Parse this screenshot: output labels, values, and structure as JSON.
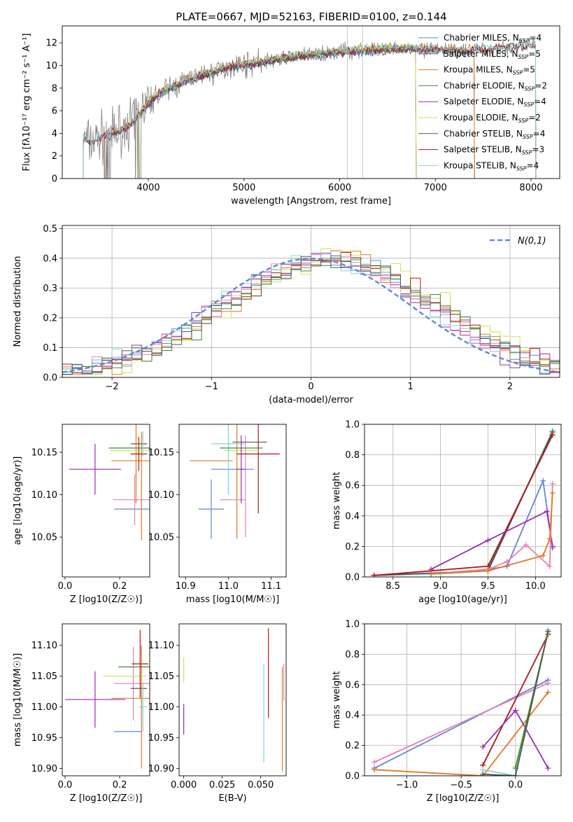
{
  "figure_title": "PLATE=0667, MJD=52163, FIBERID=0100, z=0.144",
  "colors": {
    "Chabrier MILES": "#5f87d6",
    "Salpeter MILES": "#666666",
    "Kroupa MILES": "#e07a20",
    "Chabrier ELODIE": "#3d8a3d",
    "Salpeter ELODIE": "#9a2db0",
    "Kroupa ELODIE": "#c8e64a",
    "Chabrier STELIB": "#555555",
    "Salpeter STELIB": "#b01515",
    "Kroupa STELIB": "#7fd6dc",
    "pink": "#e87fb8",
    "data_gray": "#808080",
    "normal_curve": "#5f87d6"
  },
  "chart_data": [
    {
      "id": "spectrum",
      "type": "line",
      "xlabel": "wavelength [Angstrom, rest frame]",
      "ylabel": "Flux [fλ10⁻¹⁷ erg cm⁻² s⁻¹ A⁻¹]",
      "xlim": [
        3100,
        8300
      ],
      "ylim": [
        0,
        13.5
      ],
      "xticks": [
        4000,
        5000,
        6000,
        7000,
        8000
      ],
      "yticks": [
        0,
        2,
        4,
        6,
        8,
        10,
        12
      ],
      "legend": [
        "Chabrier MILES, N_SSP=4",
        "Salpeter MILES, N_SSP=5",
        "Kroupa MILES, N_SSP=5",
        "Chabrier ELODIE, N_SSP=2",
        "Salpeter ELODIE, N_SSP=4",
        "Kroupa ELODIE, N_SSP=2",
        "Chabrier STELIB, N_SSP=4",
        "Salpeter STELIB, N_SSP=3",
        "Kroupa STELIB, N_SSP=4"
      ],
      "continuum": {
        "x": [
          3320,
          3400,
          3550,
          3700,
          3850,
          3950,
          4100,
          4300,
          4500,
          4700,
          4900,
          5100,
          5300,
          5500,
          5800,
          6100,
          6400,
          6700,
          7000,
          7300,
          7700,
          8050
        ],
        "y": [
          3.4,
          3.2,
          3.8,
          4.2,
          5.0,
          6.2,
          7.5,
          8.3,
          9.0,
          9.5,
          10.0,
          10.2,
          10.5,
          10.8,
          11.0,
          11.3,
          11.4,
          11.5,
          11.4,
          11.3,
          11.6,
          11.8
        ]
      },
      "legend_location": "upper right"
    },
    {
      "id": "residuals",
      "type": "histogram",
      "xlabel": "(data-model)/error",
      "ylabel": "Normed distribution",
      "xlim": [
        -2.5,
        2.5
      ],
      "ylim": [
        0,
        0.51
      ],
      "xticks": [
        -2,
        -1,
        0,
        1,
        2
      ],
      "yticks": [
        0.0,
        0.1,
        0.2,
        0.3,
        0.4,
        0.5
      ],
      "legend": [
        "N(0,1)"
      ],
      "bin_width": 0.1,
      "grid": true
    },
    {
      "id": "age_vs_Z",
      "type": "errorbar",
      "xlabel": "Z [log10(Z/Z☉)]",
      "ylabel": "age  [log10(age/yr)]",
      "xlim": [
        -0.01,
        0.31
      ],
      "ylim": [
        10.003,
        10.183
      ],
      "xticks": [
        0.0,
        0.2
      ],
      "yticks": [
        10.05,
        10.1,
        10.15
      ],
      "points": [
        {
          "c": "Salpeter ELODIE",
          "x": 0.11,
          "y": 10.13,
          "xerr": 0.095,
          "yerr": 0.03
        },
        {
          "c": "Chabrier MILES",
          "x": 0.25,
          "y": 10.083,
          "xerr": 0.07,
          "yerr": 0.0
        },
        {
          "c": "pink",
          "x": 0.255,
          "y": 10.094,
          "xerr": 0.08,
          "yerr": 0.03
        },
        {
          "c": "Kroupa MILES",
          "x": 0.26,
          "y": 10.14,
          "xerr": 0.09,
          "yerr": 0.05
        },
        {
          "c": "Kroupa MILES",
          "x": 0.28,
          "y": 10.11,
          "xerr": 0.0,
          "yerr": 0.064
        },
        {
          "c": "Chabrier ELODIE",
          "x": 0.25,
          "y": 10.155,
          "xerr": 0.09,
          "yerr": 0.0
        },
        {
          "c": "Kroupa ELODIE",
          "x": 0.24,
          "y": 10.152,
          "xerr": 0.075,
          "yerr": 0.0
        },
        {
          "c": "Salpeter STELIB",
          "x": 0.27,
          "y": 10.148,
          "xerr": 0.03,
          "yerr": 0.02
        },
        {
          "c": "Chabrier STELIB",
          "x": 0.27,
          "y": 10.16,
          "xerr": 0.03,
          "yerr": 0.0
        },
        {
          "c": "Kroupa STELIB",
          "x": 0.285,
          "y": 10.16,
          "xerr": 0.0,
          "yerr": 0.015
        }
      ]
    },
    {
      "id": "age_vs_mass",
      "type": "errorbar",
      "xlabel": "mass [log10(M/M☉)]",
      "ylabel": "",
      "xlim": [
        10.885,
        11.135
      ],
      "ylim": [
        10.003,
        10.183
      ],
      "xticks": [
        10.9,
        11.0,
        11.1
      ],
      "yticks": [
        10.05,
        10.1,
        10.15
      ],
      "points": [
        {
          "c": "Chabrier MILES",
          "x": 10.96,
          "y": 10.083,
          "xerr": 0.03,
          "yerr": 0.035
        },
        {
          "c": "Chabrier MILES",
          "x": 11.01,
          "y": 10.13,
          "xerr": 0.05,
          "yerr": 0.0
        },
        {
          "c": "Kroupa MILES",
          "x": 10.96,
          "y": 10.14,
          "xerr": 0.05,
          "yerr": 0.0
        },
        {
          "c": "Kroupa MILES",
          "x": 11.02,
          "y": 10.12,
          "xerr": 0.0,
          "yerr": 0.072
        },
        {
          "c": "pink",
          "x": 11.01,
          "y": 10.094,
          "xerr": 0.03,
          "yerr": 0.0
        },
        {
          "c": "pink",
          "x": 11.04,
          "y": 10.11,
          "xerr": 0.0,
          "yerr": 0.06
        },
        {
          "c": "Salpeter STELIB",
          "x": 11.07,
          "y": 10.148,
          "xerr": 0.05,
          "yerr": 0.07
        },
        {
          "c": "Kroupa STELIB",
          "x": 11.0,
          "y": 10.16,
          "xerr": 0.04,
          "yerr": 0.06
        },
        {
          "c": "Chabrier STELIB",
          "x": 11.05,
          "y": 10.162,
          "xerr": 0.04,
          "yerr": 0.0
        },
        {
          "c": "Chabrier ELODIE",
          "x": 11.03,
          "y": 10.155,
          "xerr": 0.05,
          "yerr": 0.0
        },
        {
          "c": "Kroupa ELODIE",
          "x": 11.03,
          "y": 10.152,
          "xerr": 0.04,
          "yerr": 0.0
        },
        {
          "c": "Salpeter ELODIE",
          "x": 11.03,
          "y": 10.13,
          "xerr": 0.01,
          "yerr": 0.04
        }
      ]
    },
    {
      "id": "mass_weight_vs_age",
      "type": "line",
      "xlabel": "age  [log10(age/yr)]",
      "ylabel": "mass weight",
      "xlim": [
        8.2,
        10.27
      ],
      "ylim": [
        0,
        1.0
      ],
      "xticks": [
        8.5,
        9.0,
        9.5,
        10.0
      ],
      "yticks": [
        0.0,
        0.2,
        0.4,
        0.6,
        0.8,
        1.0
      ],
      "grid": true,
      "series": [
        {
          "c": "Kroupa ELODIE",
          "x": [
            9.5,
            10.18
          ],
          "y": [
            0.06,
            0.94
          ]
        },
        {
          "c": "Chabrier ELODIE",
          "x": [
            9.5,
            10.18
          ],
          "y": [
            0.05,
            0.95
          ]
        },
        {
          "c": "Kroupa STELIB",
          "x": [
            8.3,
            9.0,
            9.5,
            10.18
          ],
          "y": [
            0.01,
            0.02,
            0.04,
            0.96
          ]
        },
        {
          "c": "Chabrier STELIB",
          "x": [
            8.3,
            9.5,
            10.18
          ],
          "y": [
            0.01,
            0.04,
            0.95
          ]
        },
        {
          "c": "Salpeter STELIB",
          "x": [
            8.3,
            8.9,
            9.5,
            10.18
          ],
          "y": [
            0.01,
            0.04,
            0.07,
            0.93
          ]
        },
        {
          "c": "Chabrier MILES",
          "x": [
            8.9,
            9.5,
            9.7,
            10.08,
            10.18
          ],
          "y": [
            0.02,
            0.05,
            0.07,
            0.63,
            0.19
          ]
        },
        {
          "c": "Salpeter ELODIE",
          "x": [
            8.9,
            9.5,
            10.12,
            10.18
          ],
          "y": [
            0.05,
            0.24,
            0.43,
            0.2
          ]
        },
        {
          "c": "pink",
          "x": [
            8.9,
            9.5,
            9.7,
            9.9,
            10.15,
            10.18
          ],
          "y": [
            0.02,
            0.05,
            0.1,
            0.21,
            0.07,
            0.61
          ]
        },
        {
          "c": "Kroupa MILES",
          "x": [
            8.9,
            9.5,
            10.08,
            10.15,
            10.18
          ],
          "y": [
            0.02,
            0.04,
            0.14,
            0.25,
            0.55
          ]
        }
      ]
    },
    {
      "id": "mass_vs_Z",
      "type": "errorbar",
      "xlabel": "Z [log10(Z/Z☉)]",
      "ylabel": "mass [log10(M/M☉)]",
      "xlim": [
        -0.01,
        0.31
      ],
      "ylim": [
        10.888,
        11.135
      ],
      "xticks": [
        0.0,
        0.2
      ],
      "yticks": [
        10.9,
        10.95,
        11.0,
        11.05,
        11.1
      ],
      "points": [
        {
          "c": "Salpeter ELODIE",
          "x": 0.11,
          "y": 11.012,
          "xerr": 0.11,
          "yerr": 0.046
        },
        {
          "c": "Chabrier MILES",
          "x": 0.23,
          "y": 10.96,
          "xerr": 0.05,
          "yerr": 0.0
        },
        {
          "c": "pink",
          "x": 0.25,
          "y": 11.038,
          "xerr": 0.07,
          "yerr": 0.06
        },
        {
          "c": "Kroupa MILES",
          "x": 0.24,
          "y": 11.014,
          "xerr": 0.07,
          "yerr": 0.0
        },
        {
          "c": "Kroupa MILES",
          "x": 0.28,
          "y": 11.0,
          "xerr": 0.0,
          "yerr": 0.1
        },
        {
          "c": "Kroupa ELODIE",
          "x": 0.22,
          "y": 11.05,
          "xerr": 0.08,
          "yerr": 0.0
        },
        {
          "c": "Chabrier ELODIE",
          "x": 0.255,
          "y": 11.065,
          "xerr": 0.06,
          "yerr": 0.0
        },
        {
          "c": "Salpeter STELIB",
          "x": 0.275,
          "y": 11.07,
          "xerr": 0.03,
          "yerr": 0.055
        },
        {
          "c": "Chabrier STELIB",
          "x": 0.27,
          "y": 11.03,
          "xerr": 0.03,
          "yerr": 0.0
        },
        {
          "c": "Kroupa STELIB",
          "x": 0.285,
          "y": 11.0,
          "xerr": 0.015,
          "yerr": 0.04
        }
      ]
    },
    {
      "id": "mass_vs_EBV",
      "type": "errorbar",
      "xlabel": "E(B-V)",
      "ylabel": "",
      "xlim": [
        -0.003,
        0.0665
      ],
      "ylim": [
        10.888,
        11.135
      ],
      "xticks": [
        0.0,
        0.025,
        0.05
      ],
      "yticks": [
        10.9,
        10.95,
        11.0,
        11.05,
        11.1
      ],
      "points": [
        {
          "c": "Kroupa ELODIE",
          "x": 0.0,
          "y": 11.06,
          "xerr": 0.0,
          "yerr": 0.02
        },
        {
          "c": "Salpeter ELODIE",
          "x": 0.0,
          "y": 10.98,
          "xerr": 0.0,
          "yerr": 0.025
        },
        {
          "c": "Kroupa STELIB",
          "x": 0.052,
          "y": 10.99,
          "xerr": 0.0,
          "yerr": 0.08
        },
        {
          "c": "Salpeter STELIB",
          "x": 0.055,
          "y": 11.055,
          "xerr": 0.0,
          "yerr": 0.073
        },
        {
          "c": "Kroupa MILES",
          "x": 0.064,
          "y": 10.98,
          "xerr": 0.0,
          "yerr": 0.085
        },
        {
          "c": "pink",
          "x": 0.065,
          "y": 11.04,
          "xerr": 0.0,
          "yerr": 0.03
        }
      ]
    },
    {
      "id": "mass_weight_vs_Z",
      "type": "line",
      "xlabel": "Z [log10(Z/Z☉)]",
      "ylabel": "mass weight",
      "xlim": [
        -1.39,
        0.42
      ],
      "ylim": [
        0,
        1.0
      ],
      "xticks": [
        -1.0,
        -0.5,
        0.0
      ],
      "yticks": [
        0.0,
        0.2,
        0.4,
        0.6,
        0.8,
        1.0
      ],
      "grid": true,
      "series": [
        {
          "c": "Chabrier MILES",
          "x": [
            -1.3,
            0.3
          ],
          "y": [
            0.05,
            0.63
          ]
        },
        {
          "c": "pink",
          "x": [
            -1.3,
            0.3
          ],
          "y": [
            0.09,
            0.61
          ]
        },
        {
          "c": "Kroupa MILES",
          "x": [
            -1.3,
            -0.3,
            0.3
          ],
          "y": [
            0.04,
            0.0,
            0.55
          ]
        },
        {
          "c": "Salpeter STELIB",
          "x": [
            -0.3,
            0.3
          ],
          "y": [
            0.07,
            0.93
          ]
        },
        {
          "c": "Salpeter ELODIE",
          "x": [
            -0.3,
            0.0,
            0.3
          ],
          "y": [
            0.19,
            0.43,
            0.05
          ]
        },
        {
          "c": "Kroupa STELIB",
          "x": [
            -0.3,
            0.0,
            0.3
          ],
          "y": [
            0.04,
            0.0,
            0.96
          ]
        },
        {
          "c": "Kroupa ELODIE",
          "x": [
            0.0,
            0.3
          ],
          "y": [
            0.06,
            0.94
          ]
        },
        {
          "c": "Chabrier ELODIE",
          "x": [
            0.0,
            0.3
          ],
          "y": [
            0.05,
            0.95
          ]
        },
        {
          "c": "Chabrier STELIB",
          "x": [
            -0.3,
            0.0,
            0.3
          ],
          "y": [
            0.01,
            0.0,
            0.95
          ]
        }
      ]
    }
  ]
}
